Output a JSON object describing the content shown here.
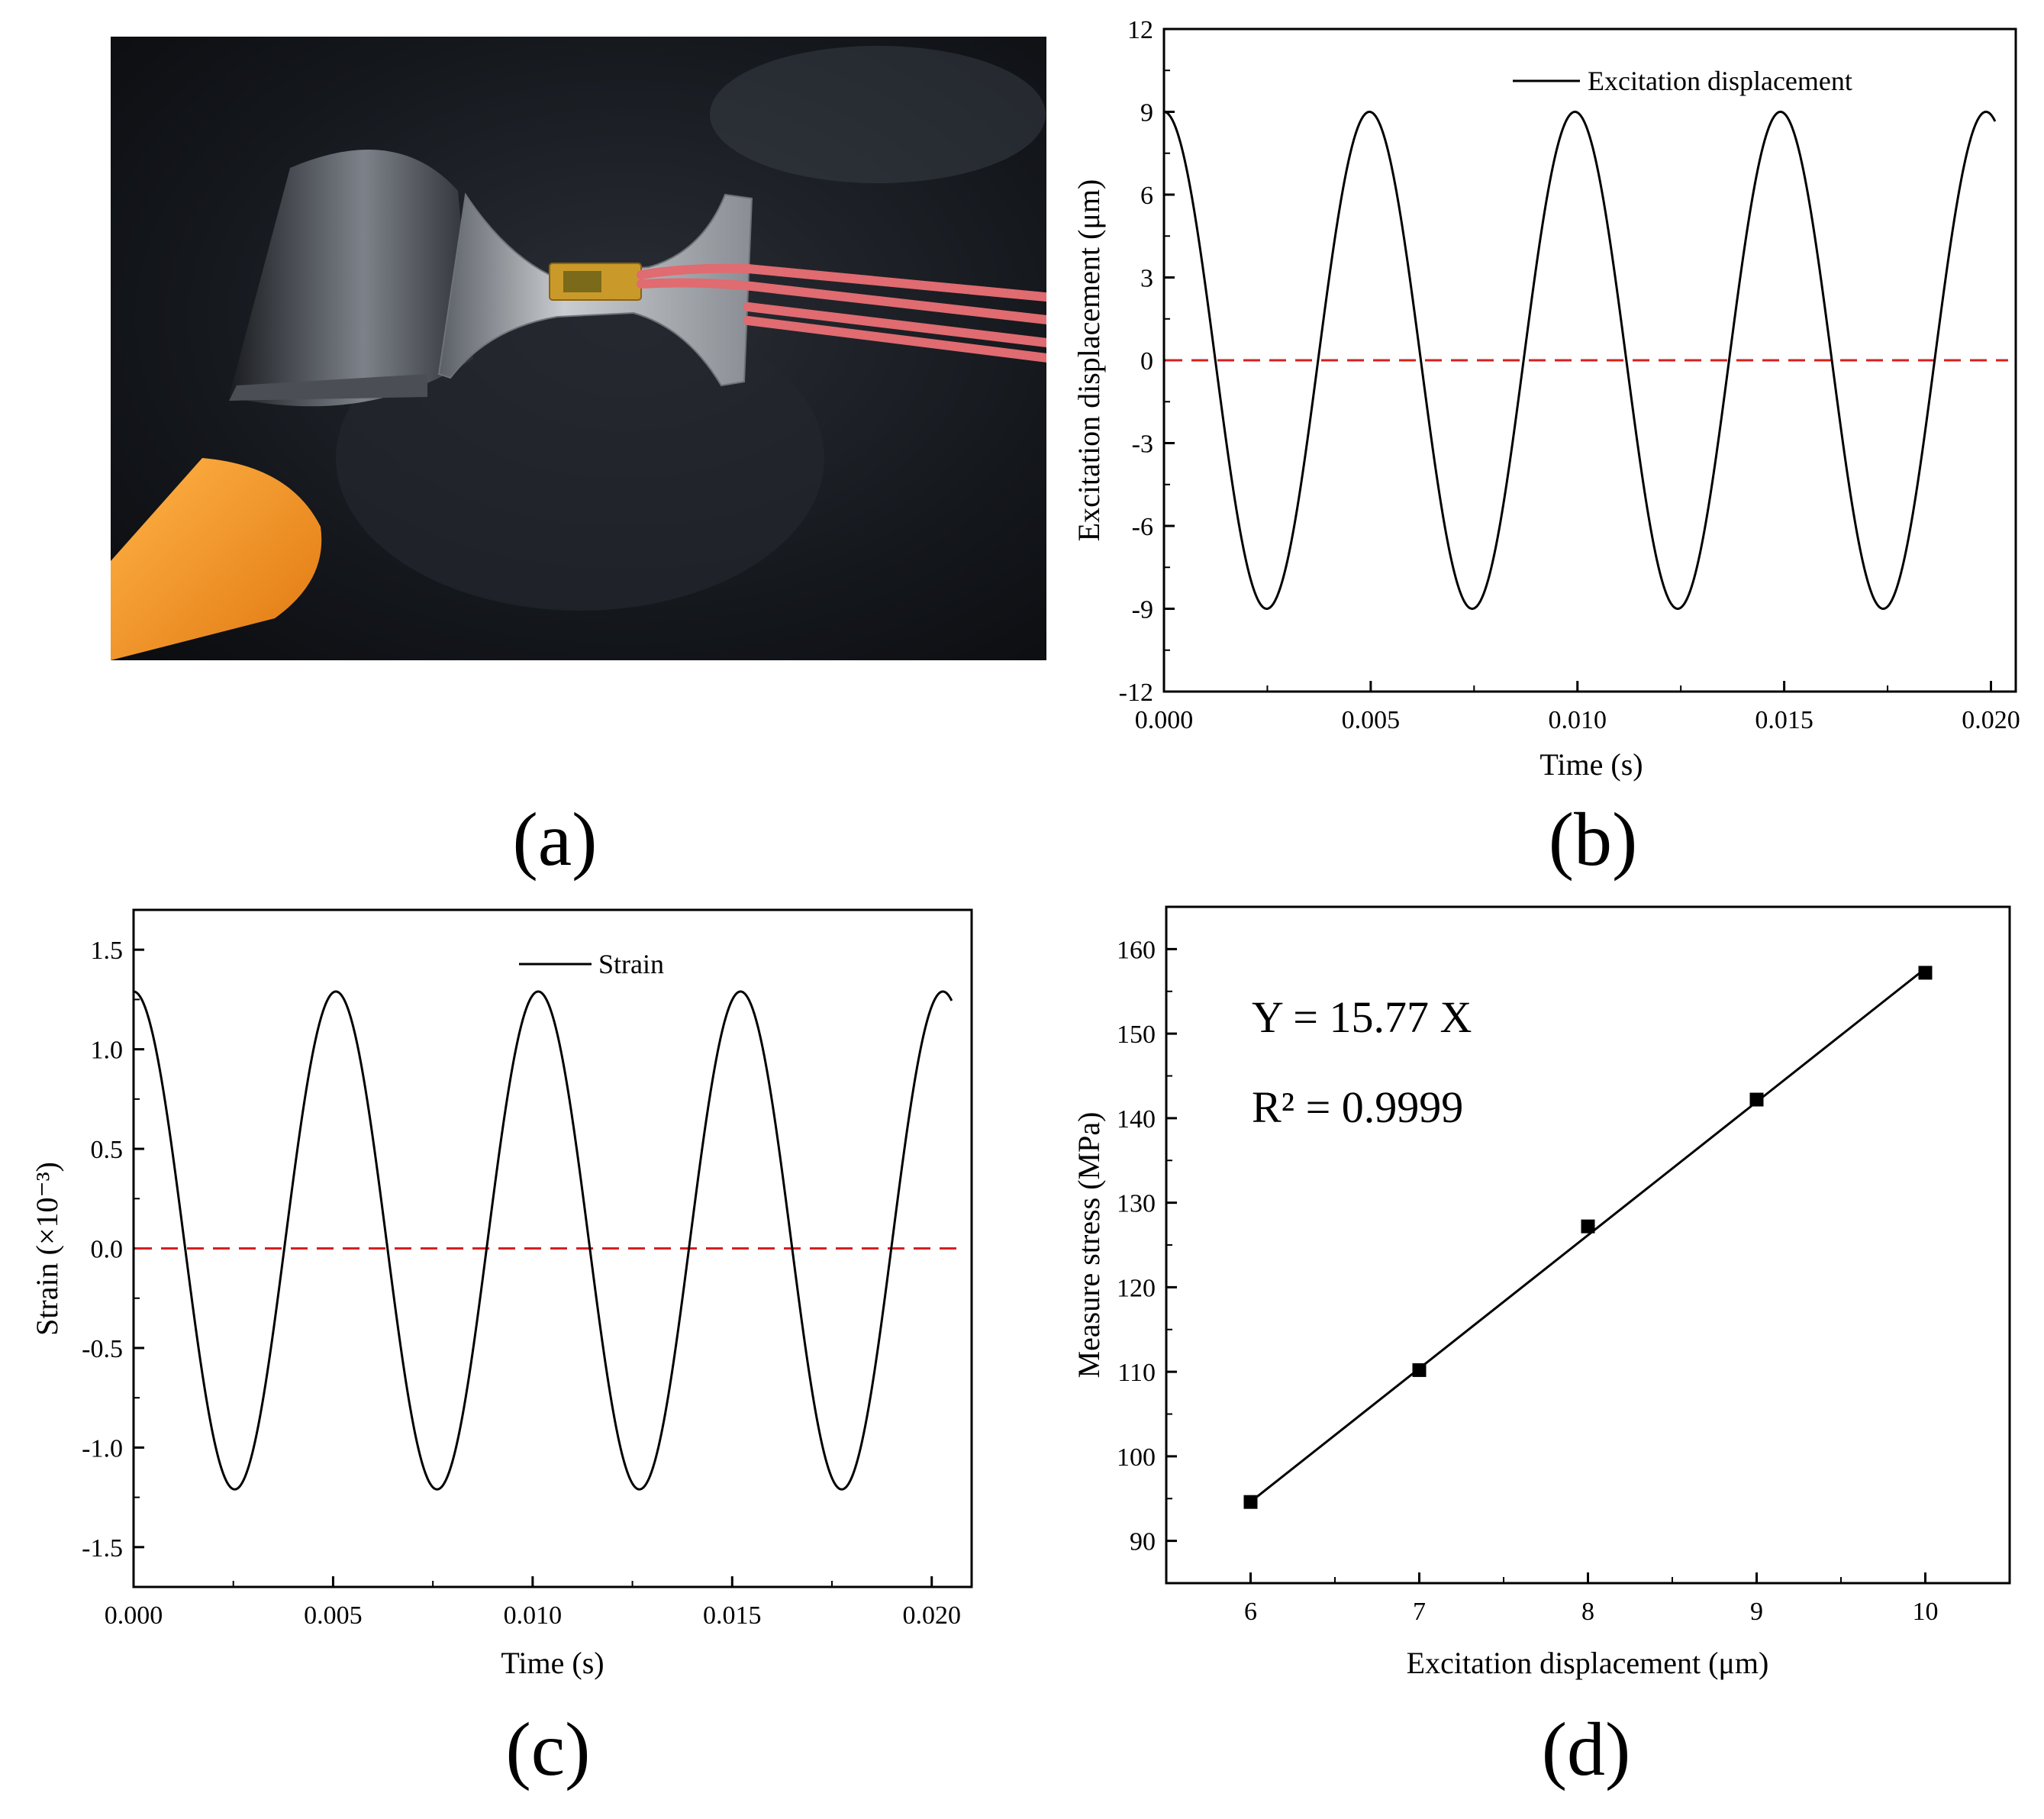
{
  "figure": {
    "panels": [
      {
        "id": "a",
        "label": "(a)"
      },
      {
        "id": "b",
        "label": "(b)"
      },
      {
        "id": "c",
        "label": "(c)"
      },
      {
        "id": "d",
        "label": "(d)"
      }
    ]
  },
  "photo": {
    "colors": {
      "background": "#101215",
      "specimen": "#b9bcc0",
      "gauge": "#c99a2a",
      "wire": "#e06b70",
      "orange_handle": "#f2931e"
    }
  },
  "chart_data": [
    {
      "panel": "b",
      "type": "line",
      "xlabel": "Time (s)",
      "ylabel": "Excitation displacement (μm)",
      "xlim": [
        0.0,
        0.0206
      ],
      "ylim": [
        -12,
        12
      ],
      "xticks": [
        0.0,
        0.005,
        0.01,
        0.015,
        0.02
      ],
      "xtick_labels": [
        "0.000",
        "0.005",
        "0.010",
        "0.015",
        "0.020"
      ],
      "yticks": [
        -12,
        -9,
        -6,
        -3,
        0,
        3,
        6,
        9,
        12
      ],
      "ytick_labels": [
        "-12",
        "-9",
        "-6",
        "-3",
        "0",
        "3",
        "6",
        "9",
        "12"
      ],
      "series": [
        {
          "name": "Excitation displacement",
          "function": "cosine",
          "amplitude": 9.0,
          "offset": 0.0,
          "period": 0.00497,
          "x_start": 0.0,
          "x_end": 0.0201,
          "color": "#000000"
        }
      ],
      "reference_line": {
        "y": 0,
        "style": "dashed",
        "color": "#d62020"
      },
      "legend": "top-right"
    },
    {
      "panel": "c",
      "type": "line",
      "xlabel": "Time (s)",
      "ylabel": "Strain (×10⁻³)",
      "xlim": [
        0.0,
        0.021
      ],
      "ylim": [
        -1.7,
        1.7
      ],
      "xticks": [
        0.0,
        0.005,
        0.01,
        0.015,
        0.02
      ],
      "xtick_labels": [
        "0.000",
        "0.005",
        "0.010",
        "0.015",
        "0.020"
      ],
      "yticks": [
        -1.5,
        -1.0,
        -0.5,
        0.0,
        0.5,
        1.0,
        1.5
      ],
      "ytick_labels": [
        "-1.5",
        "-1.0",
        "-0.5",
        "0.0",
        "0.5",
        "1.0",
        "1.5"
      ],
      "series": [
        {
          "name": "Strain",
          "function": "cosine",
          "amplitude": 1.25,
          "offset": 0.04,
          "period": 0.00507,
          "x_start": 0.0,
          "x_end": 0.0205,
          "color": "#000000"
        }
      ],
      "reference_line": {
        "y": 0,
        "style": "dashed",
        "color": "#d62020"
      },
      "legend": "top-center"
    },
    {
      "panel": "d",
      "type": "scatter",
      "xlabel": "Excitation displacement (μm)",
      "ylabel": "Measure stress (MPa)",
      "xlim": [
        5.5,
        10.5
      ],
      "ylim": [
        85,
        165
      ],
      "xticks": [
        6,
        7,
        8,
        9,
        10
      ],
      "xtick_labels": [
        "6",
        "7",
        "8",
        "9",
        "10"
      ],
      "yticks": [
        90,
        100,
        110,
        120,
        130,
        140,
        150,
        160
      ],
      "ytick_labels": [
        "90",
        "100",
        "110",
        "120",
        "130",
        "140",
        "150",
        "160"
      ],
      "series": [
        {
          "name": "",
          "x": [
            6,
            7,
            8,
            9,
            10
          ],
          "y": [
            94.6,
            110.2,
            127.2,
            142.2,
            157.2
          ],
          "marker": "square",
          "color": "#000000"
        }
      ],
      "fit": {
        "slope": 15.77,
        "intercept": 0,
        "x_range": [
          6,
          10
        ],
        "color": "#000000"
      },
      "annotations": [
        "Y = 15.77 X",
        "R² = 0.9999"
      ]
    }
  ]
}
